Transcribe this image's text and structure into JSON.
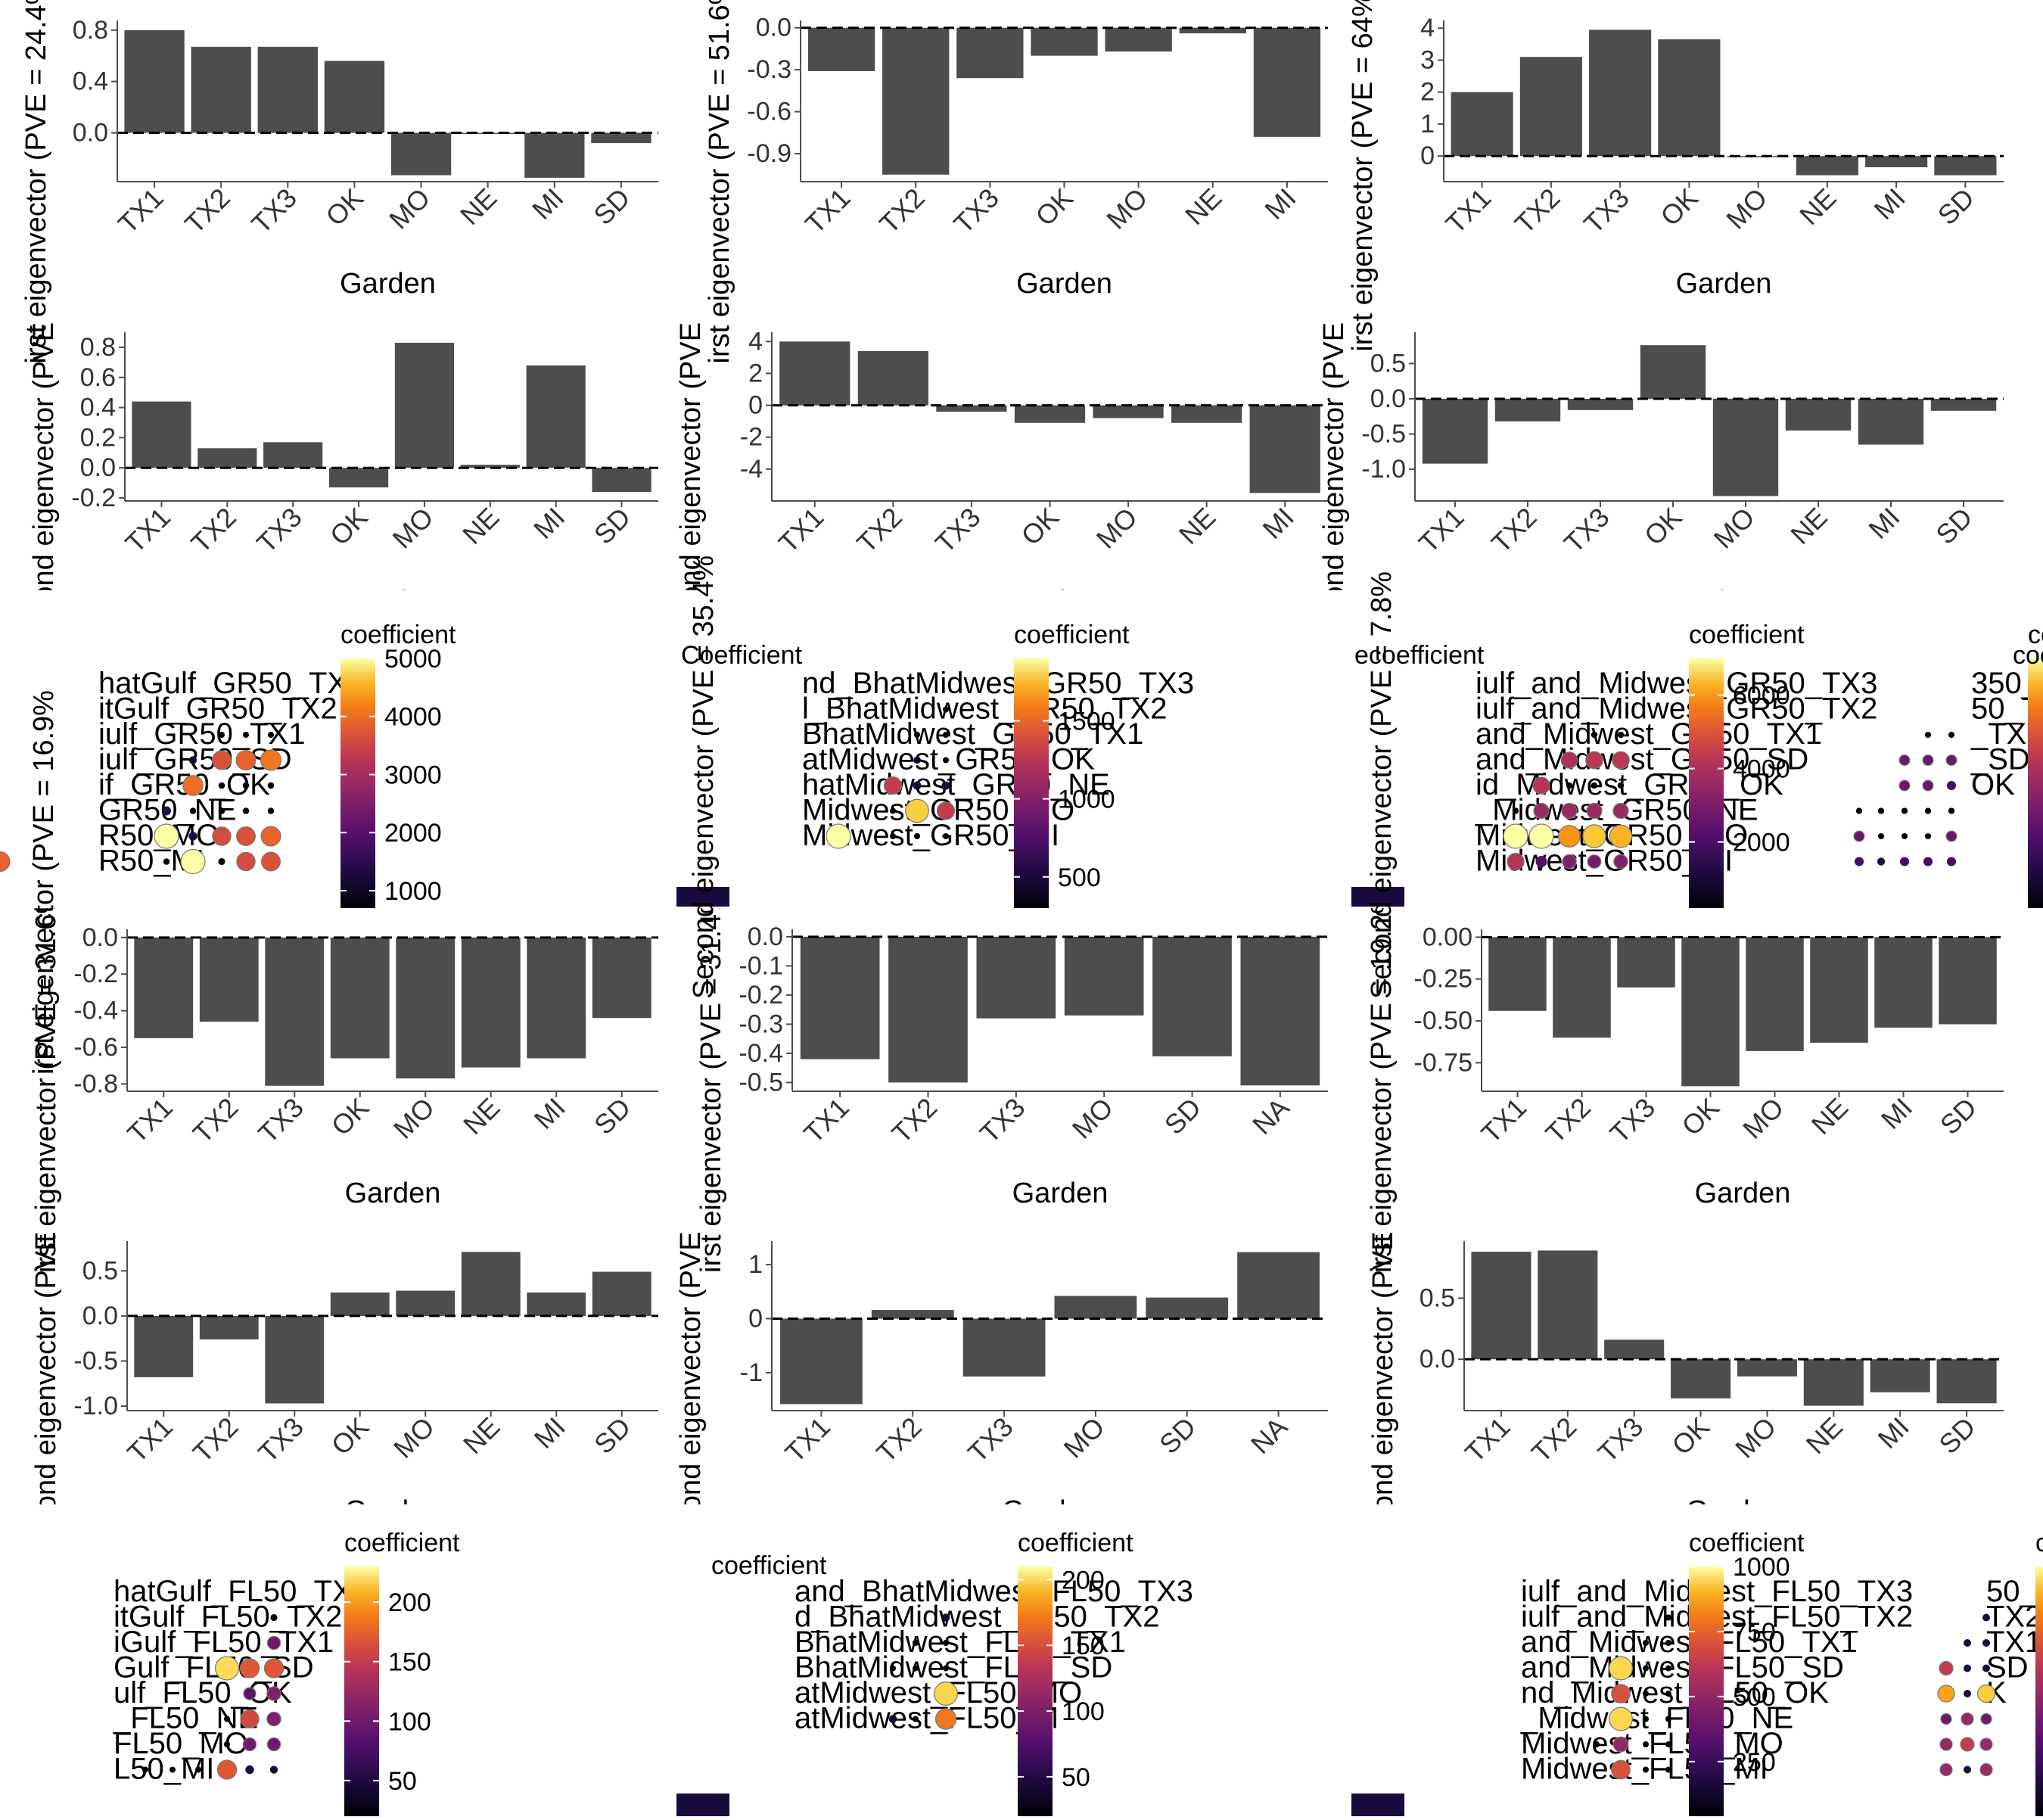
{
  "bar_charts": [
    {
      "id": "b1",
      "type": "bar",
      "ylabel": "irst eigenvector (PVE = 24.4%",
      "xlabel": "Garden",
      "categories": [
        "TX1",
        "TX2",
        "TX3",
        "OK",
        "MO",
        "NE",
        "MI",
        "SD"
      ],
      "values": [
        0.8,
        0.67,
        0.67,
        0.56,
        -0.33,
        0.0,
        -0.35,
        -0.08
      ],
      "ylim": [
        -0.38,
        0.84
      ],
      "yticks": [
        0.8,
        0.4,
        0.0
      ],
      "ytick_labels": [
        "0.8",
        "0.4",
        "0.0"
      ]
    },
    {
      "id": "b2",
      "type": "bar",
      "ylabel": "irst eigenvector (PVE = 51.6%",
      "xlabel": "Garden",
      "categories": [
        "TX1",
        "TX2",
        "TX3",
        "OK",
        "MO",
        "NE",
        "MI"
      ],
      "values": [
        -0.31,
        -1.05,
        -0.36,
        -0.2,
        -0.17,
        -0.04,
        -0.78
      ],
      "ylim": [
        -1.1,
        0.02
      ],
      "yticks": [
        0.0,
        -0.3,
        -0.6,
        -0.9
      ],
      "ytick_labels": [
        "0.0",
        "-0.3",
        "-0.6",
        "-0.9"
      ]
    },
    {
      "id": "b3",
      "type": "bar",
      "ylabel": "irst eigenvector (PVE = 64%",
      "xlabel": "Garden",
      "categories": [
        "TX1",
        "TX2",
        "TX3",
        "OK",
        "MO",
        "NE",
        "MI",
        "SD"
      ],
      "values": [
        2.0,
        3.1,
        3.95,
        3.65,
        0.0,
        -0.6,
        -0.35,
        -0.6
      ],
      "ylim": [
        -0.8,
        4.1
      ],
      "yticks": [
        4,
        3,
        2,
        1,
        0
      ],
      "ytick_labels": [
        "4",
        "3",
        "2",
        "1",
        "0"
      ]
    },
    {
      "id": "b4",
      "type": "bar",
      "ylabel": "Second eigenvector (PVE",
      "xlabel": "Garden",
      "categories": [
        "TX1",
        "TX2",
        "TX3",
        "OK",
        "MO",
        "NE",
        "MI",
        "SD"
      ],
      "values": [
        0.44,
        0.13,
        0.17,
        -0.13,
        0.83,
        0.02,
        0.68,
        -0.16
      ],
      "ylim": [
        -0.22,
        0.87
      ],
      "yticks": [
        0.8,
        0.6,
        0.4,
        0.2,
        0.0,
        -0.2
      ],
      "ytick_labels": [
        "0.8",
        "0.6",
        "0.4",
        "0.2",
        "0.0",
        "-0.2"
      ]
    },
    {
      "id": "b5",
      "type": "bar",
      "ylabel": "Second eigenvector (PVE",
      "xlabel": "Garden",
      "categories": [
        "TX1",
        "TX2",
        "TX3",
        "OK",
        "MO",
        "NE",
        "MI"
      ],
      "values": [
        4.0,
        3.4,
        -0.4,
        -1.1,
        -0.8,
        -1.1,
        -5.5
      ],
      "ylim": [
        -6.0,
        4.3
      ],
      "yticks": [
        4,
        2,
        0,
        -2,
        -4
      ],
      "ytick_labels": [
        "4",
        "2",
        "0",
        "-2",
        "-4"
      ]
    },
    {
      "id": "b6",
      "type": "bar",
      "ylabel": "Second eigenvector (PVE",
      "xlabel": "Garden",
      "categories": [
        "TX1",
        "TX2",
        "TX3",
        "OK",
        "MO",
        "NE",
        "MI",
        "SD"
      ],
      "values": [
        -0.92,
        -0.32,
        -0.16,
        0.76,
        -1.38,
        -0.45,
        -0.65,
        -0.17
      ],
      "ylim": [
        -1.45,
        0.88
      ],
      "yticks": [
        0.5,
        0.0,
        -0.5,
        -1.0
      ],
      "ytick_labels": [
        "0.5",
        "0.0",
        "-0.5",
        "-1.0"
      ]
    },
    {
      "id": "b7",
      "type": "bar",
      "ylabel": "irst eigenvector (PVE = 31.6%",
      "xlabel": "Garden",
      "categories": [
        "TX1",
        "TX2",
        "TX3",
        "OK",
        "MO",
        "NE",
        "MI",
        "SD"
      ],
      "values": [
        -0.55,
        -0.46,
        -0.81,
        -0.66,
        -0.77,
        -0.71,
        -0.66,
        -0.44
      ],
      "ylim": [
        -0.84,
        0.02
      ],
      "yticks": [
        0.0,
        -0.2,
        -0.4,
        -0.6,
        -0.8
      ],
      "ytick_labels": [
        "0.0",
        "-0.2",
        "-0.4",
        "-0.6",
        "-0.8"
      ]
    },
    {
      "id": "b8",
      "type": "bar",
      "ylabel": "irst eigenvector (PVE = 31.4%",
      "xlabel": "Garden",
      "categories": [
        "TX1",
        "TX2",
        "TX3",
        "MO",
        "SD",
        "NA"
      ],
      "values": [
        -0.42,
        -0.5,
        -0.28,
        -0.27,
        -0.41,
        -0.51
      ],
      "ylim": [
        -0.53,
        0.01
      ],
      "yticks": [
        0.0,
        -0.1,
        -0.2,
        -0.3,
        -0.4,
        -0.5
      ],
      "ytick_labels": [
        "0.0",
        "-0.1",
        "-0.2",
        "-0.3",
        "-0.4",
        "-0.5"
      ]
    },
    {
      "id": "b9",
      "type": "bar",
      "ylabel": "irst eigenvector (PVE = 19.2%",
      "xlabel": "Garden",
      "categories": [
        "TX1",
        "TX2",
        "TX3",
        "OK",
        "MO",
        "NE",
        "MI",
        "SD"
      ],
      "values": [
        -0.44,
        -0.6,
        -0.3,
        -0.89,
        -0.68,
        -0.63,
        -0.54,
        -0.52
      ],
      "ylim": [
        -0.92,
        0.02
      ],
      "yticks": [
        0.0,
        -0.25,
        -0.5,
        -0.75
      ],
      "ytick_labels": [
        "0.00",
        "-0.25",
        "-0.50",
        "-0.75"
      ]
    },
    {
      "id": "b10",
      "type": "bar",
      "ylabel": "Second eigenvector (PVE",
      "xlabel": "Garden",
      "categories": [
        "TX1",
        "TX2",
        "TX3",
        "OK",
        "MO",
        "NE",
        "MI",
        "SD"
      ],
      "values": [
        -0.68,
        -0.26,
        -0.97,
        0.26,
        0.28,
        0.71,
        0.26,
        0.49
      ],
      "ylim": [
        -1.05,
        0.78
      ],
      "yticks": [
        0.5,
        0.0,
        -0.5,
        -1.0
      ],
      "ytick_labels": [
        "0.5",
        "0.0",
        "-0.5",
        "-1.0"
      ]
    },
    {
      "id": "b11",
      "type": "bar",
      "ylabel": "Second eigenvector (PVE",
      "xlabel": "Garden",
      "categories": [
        "TX1",
        "TX2",
        "TX3",
        "MO",
        "SD",
        "NA"
      ],
      "values": [
        -1.58,
        0.16,
        -1.07,
        0.42,
        0.39,
        1.23
      ],
      "ylim": [
        -1.7,
        1.35
      ],
      "yticks": [
        1,
        0,
        -1
      ],
      "ytick_labels": [
        "1",
        "0",
        "-1"
      ]
    },
    {
      "id": "b12",
      "type": "bar",
      "ylabel": "Second eigenvector (PVE",
      "xlabel": "Garden",
      "categories": [
        "TX1",
        "TX2",
        "TX3",
        "OK",
        "MO",
        "NE",
        "MI",
        "SD"
      ],
      "values": [
        0.88,
        0.89,
        0.16,
        -0.32,
        -0.14,
        -0.38,
        -0.27,
        -0.36
      ],
      "ylim": [
        -0.42,
        0.93
      ],
      "yticks": [
        0.5,
        0.0
      ],
      "ytick_labels": [
        "0.5",
        "0.0"
      ]
    }
  ],
  "dot_panels": [
    {
      "id": "d1",
      "legend_title": "coefficient",
      "range": [
        700,
        5000
      ],
      "ticks": [
        5000,
        4000,
        3000,
        2000,
        1000
      ],
      "rows": [
        "hatGulf_GR50_TX3",
        "itGulf_GR50_TX2",
        "iulf_GR50_TX1",
        "iulf_GR50_SD",
        "if_GR50_OK",
        "GR50_NE",
        "R50_MO",
        "R50_MI"
      ],
      "matrix": [
        [],
        [],
        [
          0,
          0,
          700
        ],
        [
          1100,
          3700,
          3900,
          4100
        ],
        [
          4000,
          800,
          800,
          800
        ],
        [
          1400,
          800,
          800,
          800,
          800
        ],
        [
          5000,
          1300,
          3600,
          3700,
          3900
        ],
        [
          800,
          5000,
          900,
          3600,
          3700,
          3900
        ]
      ]
    },
    {
      "id": "d2",
      "legend_title": "coefficient",
      "range": [
        300,
        1900
      ],
      "ticks": [
        1500,
        1000,
        500
      ],
      "rows": [
        "nd_BhatMidwest_GR50_TX3",
        "l_BhatMidwest_GR50_TX2",
        "BhatMidwest_GR50_TX1",
        "atMidwest_GR50_OK",
        "hatMidwest_GR50_NE",
        "Midwest_GR50_MO",
        "Midwest_GR50_MI"
      ],
      "matrix": [
        [],
        [
          300
        ],
        [
          300,
          300
        ],
        [
          400,
          300
        ],
        [
          1300,
          500,
          500
        ],
        [
          300,
          1800,
          1300
        ],
        [
          1900,
          300,
          300,
          300
        ]
      ]
    },
    {
      "id": "d3",
      "legend_title": "coefficient",
      "range": [
        200,
        7000
      ],
      "ticks": [
        6000,
        4000,
        2000
      ],
      "rows": [
        "iulf_and_Midwest_GR50_TX3",
        "iulf_and_Midwest_GR50_TX2",
        "and_Midwest_GR50_TX1",
        "and_Midwest_GR50_SD",
        "id_Midwest_GR50_OK",
        "_Midwest_GR50_NE",
        "Midwest_GR50_MO",
        "Midwest_GR50_MI"
      ],
      "matrix": [
        [],
        [],
        [
          300,
          300
        ],
        [
          4000,
          4300,
          4300
        ],
        [
          4200,
          300,
          300,
          300
        ],
        [
          300,
          3600,
          3600,
          3600,
          3600
        ],
        [
          7000,
          7000,
          6000,
          6500,
          6300
        ],
        [
          4200,
          2200,
          3100,
          2900,
          3100
        ]
      ]
    },
    {
      "id": "d4",
      "legend_title": "coefficient",
      "range": [
        300,
        5000
      ],
      "ticks": [],
      "rows": [
        "350_TX3",
        "50_TX2",
        "_TX1",
        "_SD",
        "OK",
        "",
        "",
        ""
      ],
      "matrix": [
        [],
        [],
        [
          300,
          300
        ],
        [
          2000,
          2000,
          2000
        ],
        [
          2000,
          2000,
          1500
        ],
        [
          400,
          400,
          400,
          400,
          400
        ],
        [
          2000,
          300,
          300,
          300,
          2000
        ],
        [
          1500,
          1000,
          1500,
          1500,
          1500
        ]
      ]
    },
    {
      "id": "d5",
      "legend_title": "coefficient",
      "range": [
        20,
        230
      ],
      "ticks": [
        200,
        150,
        100,
        50
      ],
      "rows": [
        "hatGulf_FL50_TX3",
        "itGulf_FL50_TX2",
        "iGulf_FL50_TX1",
        "Gulf_FL50_SD",
        "ulf_FL50_OK",
        "_FL50_NE",
        "FL50_MO",
        "L50_MI"
      ],
      "matrix": [
        [],
        [
          30
        ],
        [
          100
        ],
        [
          220,
          170,
          170
        ],
        [
          90,
          110
        ],
        [
          20,
          160,
          110
        ],
        [
          20,
          100,
          100
        ],
        [
          20,
          20,
          20,
          170,
          50,
          40
        ]
      ]
    },
    {
      "id": "d6",
      "legend_title": "coefficient",
      "range": [
        20,
        210
      ],
      "ticks": [
        200,
        150,
        100,
        50
      ],
      "rows": [
        "and_BhatMidwest_FL50_TX3",
        "d_BhatMidwest_FL50_TX2",
        "BhatMidwest_FL50_TX1",
        "BhatMidwest_FL50_SD",
        "atMidwest_FL50_MO",
        "atMidwest_FL50_M"
      ],
      "matrix": [
        [],
        [
          40
        ],
        [
          20,
          20
        ],
        [
          20,
          20,
          20
        ],
        [
          200
        ],
        [
          40,
          20,
          170
        ]
      ]
    },
    {
      "id": "d7",
      "legend_title": "coefficient",
      "range": [
        40,
        1000
      ],
      "ticks": [
        1000,
        750,
        500,
        250
      ],
      "rows": [
        "iulf_and_Midwest_FL50_TX3",
        "iulf_and_Midwest_FL50_TX2",
        "and_Midwest_FL50_TX1",
        "and_Midwest_FL50_SD",
        "nd_Midwest_FL50_OK",
        "_Midwest_FL50_NE",
        "Midwest_FL50_MO",
        "Midwest_FL50_MI"
      ],
      "matrix": [
        [],
        [
          50
        ],
        [
          40,
          40
        ],
        [
          950,
          40,
          40
        ],
        [
          700,
          40,
          40
        ],
        [
          950,
          40,
          40
        ],
        [
          50,
          500,
          40,
          40
        ],
        [
          700,
          40,
          40
        ]
      ]
    },
    {
      "id": "d8",
      "legend_title": "coefficient",
      "range": [
        200,
        1000
      ],
      "ticks": [],
      "rows": [
        "50_TX",
        "TX2",
        "TX1",
        "SD",
        "K",
        "",
        "",
        ""
      ],
      "matrix": [
        [],
        [
          300
        ],
        [
          300,
          300
        ],
        [
          700,
          300,
          300
        ],
        [
          900,
          300,
          950
        ],
        [
          500,
          600,
          500
        ],
        [
          600,
          700,
          600
        ],
        [
          600,
          300,
          600
        ]
      ]
    }
  ],
  "stray_labels": [
    {
      "id": "s1",
      "text": "Coefficient"
    },
    {
      "id": "s2",
      "text": "Second eigenvector (PVE = 35.4%"
    },
    {
      "id": "s3",
      "text": "ecoefficient"
    },
    {
      "id": "s4",
      "text": "Second eigenvector (PVE = 7.8%"
    },
    {
      "id": "s5",
      "text": "irst eigenvector (PVE = 16.9%"
    },
    {
      "id": "s6",
      "text": "Second eigenvector (PVE = 3.9%"
    },
    {
      "id": "s7",
      "text": "coefficient"
    },
    {
      "id": "s8",
      "text": "coefficient"
    }
  ],
  "colors": {
    "bar": "#4d4d4d",
    "axis": "#4d4d4d",
    "text": "#000000",
    "tick_text": "#333333"
  }
}
